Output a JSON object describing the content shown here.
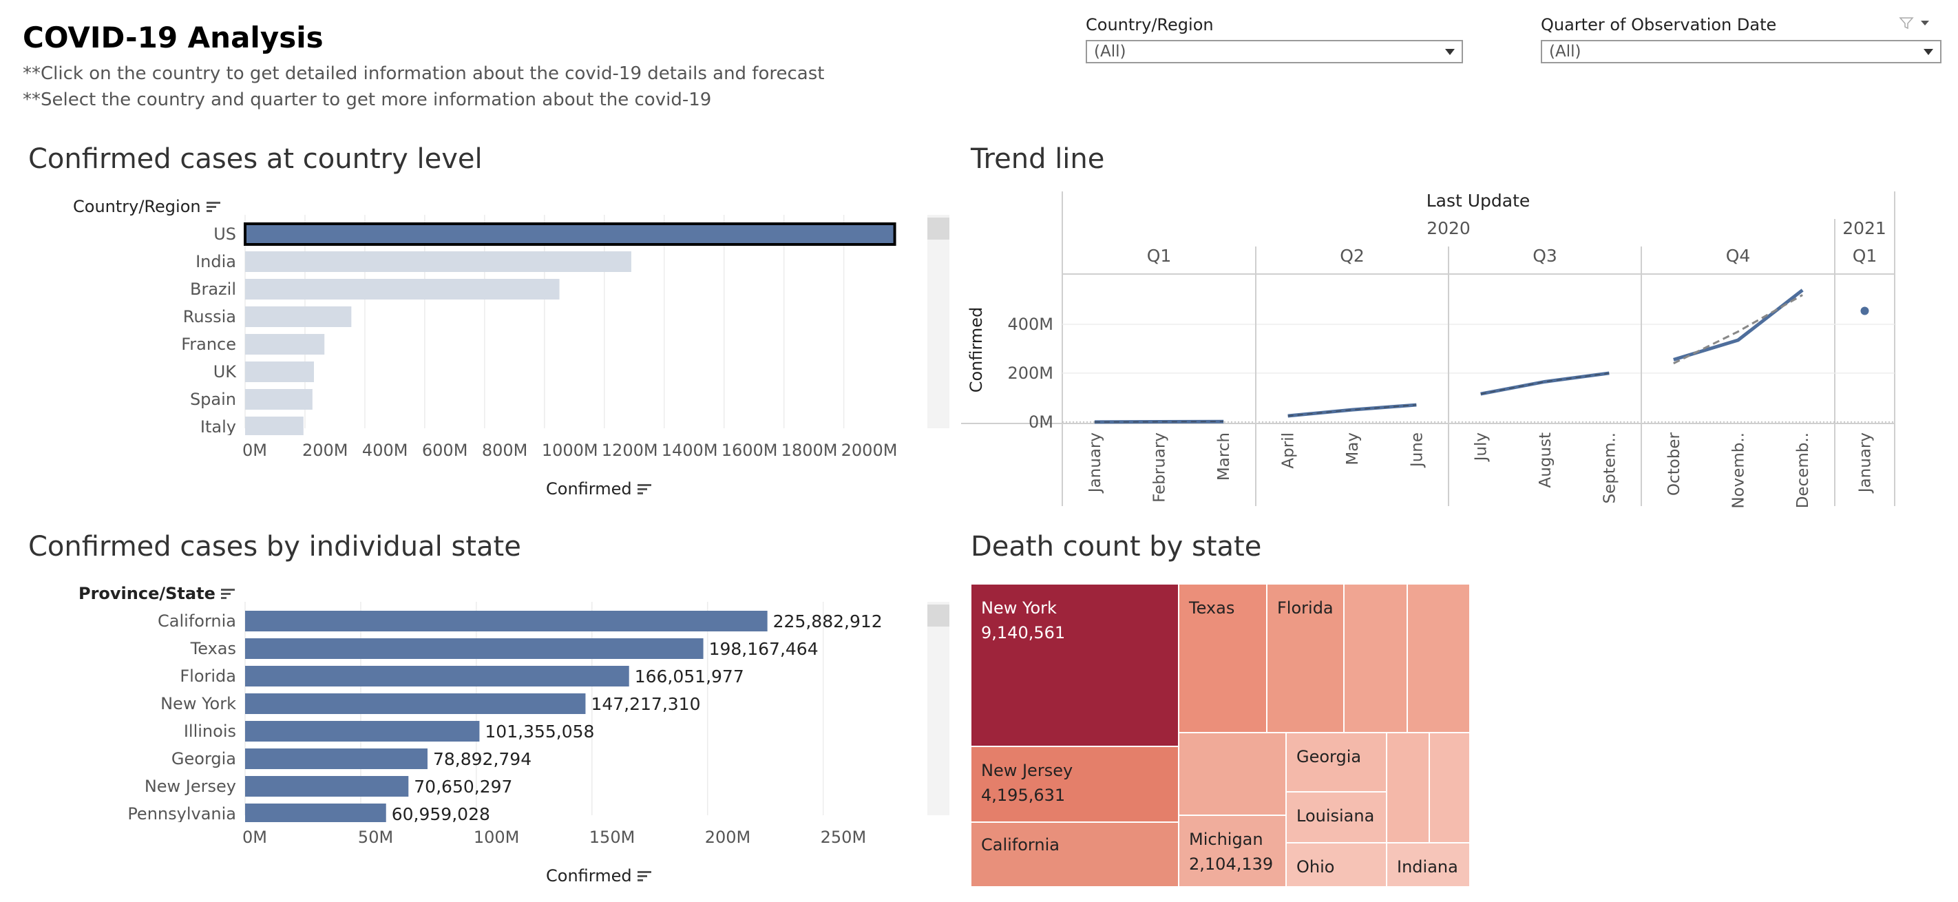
{
  "header": {
    "title": "COVID-19 Analysis",
    "line1": "**Click on the country to get detailed information about the covid-19 details and forecast",
    "line2": "**Select the country and quarter to get more information about the covid-19"
  },
  "filters": {
    "country": {
      "label": "Country/Region",
      "value": "(All)"
    },
    "quarter": {
      "label": "Quarter of Observation Date",
      "value": "(All)"
    }
  },
  "country_sheet": {
    "title": "Confirmed cases at country level",
    "dim_label": "Country/Region",
    "measure_label": "Confirmed"
  },
  "trend_sheet": {
    "title": "Trend line",
    "header": "Last Update",
    "measure_label": "Confirmed"
  },
  "state_sheet": {
    "title": "Confirmed cases by individual state",
    "dim_label": "Province/State",
    "measure_label": "Confirmed"
  },
  "death_sheet": {
    "title": "Death count by state"
  },
  "colors": {
    "bar_blue": "#5b77a3",
    "bar_grey": "#d4dbe5",
    "selected_outline": "#000000",
    "trend_line": "#4e6e9c",
    "trend_forecast": "#888888"
  },
  "chart_data": [
    {
      "type": "bar",
      "title": "Confirmed cases at country level",
      "categories": [
        "US",
        "India",
        "Brazil",
        "Russia",
        "France",
        "UK",
        "Spain",
        "Italy"
      ],
      "values": [
        2170000000,
        1290000000,
        1050000000,
        355000000,
        265000000,
        230000000,
        225000000,
        195000000
      ],
      "selected": "US",
      "xlabel": "Confirmed",
      "ylabel": "Country/Region",
      "xticks": [
        "0M",
        "200M",
        "400M",
        "600M",
        "800M",
        "1000M",
        "1200M",
        "1400M",
        "1600M",
        "1800M",
        "2000M"
      ],
      "xlim": [
        0,
        2240000000
      ]
    },
    {
      "type": "line",
      "title": "Trend line",
      "xlabel": "Last Update",
      "ylabel": "Confirmed",
      "years": [
        {
          "label": "2020",
          "quarters": [
            "Q1",
            "Q2",
            "Q3",
            "Q4"
          ]
        },
        {
          "label": "2021",
          "quarters": [
            "Q1"
          ]
        }
      ],
      "quarters": [
        {
          "label": "Q1",
          "months": [
            "January",
            "February",
            "March"
          ],
          "values": [
            0,
            1000000,
            2000000
          ]
        },
        {
          "label": "Q2",
          "months": [
            "April",
            "May",
            "June"
          ],
          "values": [
            25000000,
            50000000,
            70000000
          ]
        },
        {
          "label": "Q3",
          "months": [
            "July",
            "August",
            "Septem.."
          ],
          "values": [
            115000000,
            165000000,
            200000000
          ]
        },
        {
          "label": "Q4",
          "months": [
            "October",
            "Novemb..",
            "Decemb.."
          ],
          "values": [
            255000000,
            335000000,
            540000000
          ]
        },
        {
          "label": "Q1",
          "months": [
            "January"
          ],
          "values": [
            455000000
          ]
        }
      ],
      "forecast_q4": [
        240000000,
        370000000,
        520000000
      ],
      "yticks": [
        "0M",
        "200M",
        "400M"
      ],
      "ylim": [
        -20000000,
        600000000
      ]
    },
    {
      "type": "bar",
      "title": "Confirmed cases by individual state",
      "categories": [
        "California",
        "Texas",
        "Florida",
        "New York",
        "Illinois",
        "Georgia",
        "New Jersey",
        "Pennsylvania"
      ],
      "values": [
        225882912,
        198167464,
        166051977,
        147217310,
        101355058,
        78892794,
        70650297,
        60959028
      ],
      "labels": [
        "225,882,912",
        "198,167,464",
        "166,051,977",
        "147,217,310",
        "101,355,058",
        "78,892,794",
        "70,650,297",
        "60,959,028"
      ],
      "xlabel": "Confirmed",
      "ylabel": "Province/State",
      "xticks": [
        "0M",
        "50M",
        "100M",
        "150M",
        "200M",
        "250M"
      ],
      "xlim": [
        0,
        290000000
      ]
    },
    {
      "type": "treemap",
      "title": "Death count by state",
      "cells": [
        {
          "name": "New York",
          "value": "9,140,561",
          "color": "#9e243b"
        },
        {
          "name": "New Jersey",
          "value": "4,195,631",
          "color": "#e47f6a"
        },
        {
          "name": "California",
          "value": "",
          "color": "#e8907b"
        },
        {
          "name": "Texas",
          "value": "",
          "color": "#eb8f7a"
        },
        {
          "name": "Florida",
          "value": "",
          "color": "#ed9a85"
        },
        {
          "name": "",
          "value": "",
          "color": "#f0a592"
        },
        {
          "name": "",
          "value": "",
          "color": "#f0a592"
        },
        {
          "name": "",
          "value": "",
          "color": "#f0aa98"
        },
        {
          "name": "Georgia",
          "value": "",
          "color": "#f4b9aa"
        },
        {
          "name": "Louisiana",
          "value": "",
          "color": "#f5beb0"
        },
        {
          "name": "Michigan",
          "value": "2,104,139",
          "color": "#f0ad9c"
        },
        {
          "name": "Ohio",
          "value": "",
          "color": "#f6c3b6"
        },
        {
          "name": "",
          "value": "",
          "color": "#f4b8a9"
        },
        {
          "name": "",
          "value": "",
          "color": "#f5bcae"
        },
        {
          "name": "Indiana",
          "value": "",
          "color": "#f6c5b9"
        }
      ]
    }
  ]
}
